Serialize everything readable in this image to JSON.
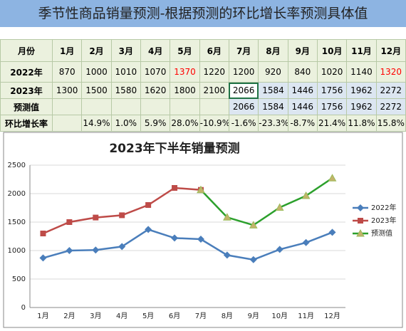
{
  "title": "季节性商品销量预测-根据预测的环比增长率预测具体值",
  "table": {
    "header": [
      "月份",
      "1月",
      "2月",
      "3月",
      "4月",
      "5月",
      "6月",
      "7月",
      "8月",
      "9月",
      "10月",
      "11月",
      "12月"
    ],
    "rows": [
      [
        "2022年",
        870,
        1000,
        1010,
        1070,
        1370,
        1220,
        1200,
        920,
        840,
        1020,
        1140,
        1320
      ],
      [
        "2023年",
        1300,
        1500,
        1580,
        1620,
        1800,
        2100,
        2066,
        1584,
        1446,
        1756,
        1962,
        2272
      ],
      [
        "预测值",
        null,
        null,
        null,
        null,
        null,
        null,
        2066,
        1584,
        1446,
        1756,
        1962,
        2272
      ],
      [
        "环比增长率",
        null,
        "14.9%",
        "1.0%",
        "5.9%",
        "28.0%",
        "-10.9%",
        "-1.6%",
        "-23.3%",
        "-8.7%",
        "21.4%",
        "11.8%",
        "15.8%"
      ]
    ],
    "red_cells": [
      [
        0,
        5
      ],
      [
        0,
        12
      ]
    ]
  },
  "chart_data": {
    "type": "line",
    "title": "2023年下半年销量预测",
    "categories": [
      "1月",
      "2月",
      "3月",
      "4月",
      "5月",
      "6月",
      "7月",
      "8月",
      "9月",
      "10月",
      "11月",
      "12月"
    ],
    "series": [
      {
        "name": "2022年",
        "color": "#4a7ebb",
        "marker": "diamond",
        "values": [
          870,
          1000,
          1010,
          1070,
          1370,
          1220,
          1200,
          920,
          840,
          1020,
          1140,
          1320
        ]
      },
      {
        "name": "2023年",
        "color": "#be4b48",
        "marker": "square",
        "values": [
          1300,
          1500,
          1580,
          1620,
          1800,
          2100,
          2066,
          null,
          null,
          null,
          null,
          null
        ]
      },
      {
        "name": "预测值",
        "color": "#2ca02c",
        "marker": "triangle",
        "values": [
          null,
          null,
          null,
          null,
          null,
          null,
          2066,
          1584,
          1446,
          1756,
          1962,
          2272
        ]
      }
    ],
    "ylim": [
      0,
      2500
    ],
    "yticks": [
      0,
      500,
      1000,
      1500,
      2000,
      2500
    ],
    "grid": true,
    "legend": "right"
  }
}
